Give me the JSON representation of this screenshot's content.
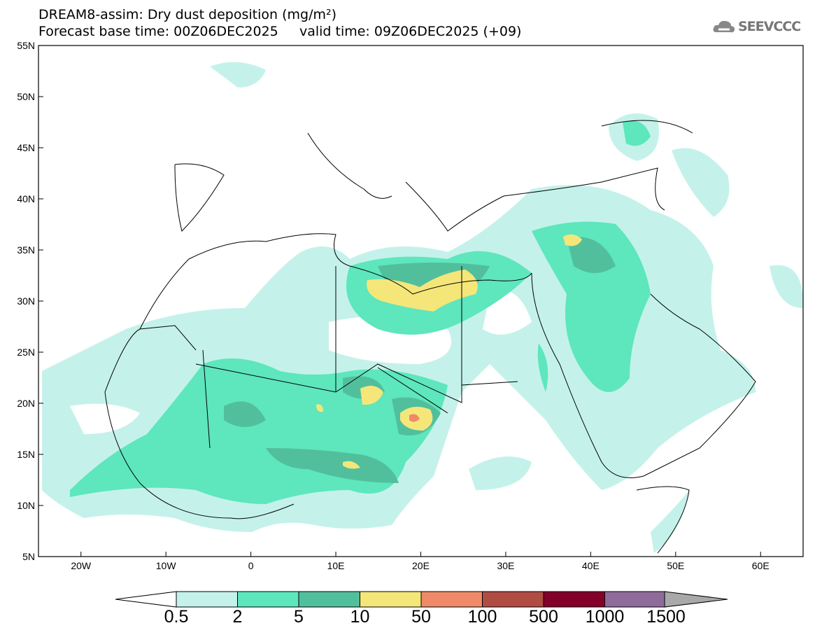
{
  "header": {
    "title": "DREAM8-assim: Dry dust deposition (mg/m²)",
    "subtitle": "Forecast base time: 00Z06DEC2025     valid time: 09Z06DEC2025 (+09)",
    "logo": "SEEVCCC"
  },
  "axes": {
    "lat_labels": [
      "55N",
      "50N",
      "45N",
      "40N",
      "35N",
      "30N",
      "25N",
      "20N",
      "15N",
      "10N",
      "5N"
    ],
    "lon_labels": [
      "20W",
      "10W",
      "0",
      "10E",
      "20E",
      "30E",
      "40E",
      "50E",
      "60E"
    ]
  },
  "colorbar": {
    "labels": [
      "0.5",
      "2",
      "5",
      "10",
      "50",
      "100",
      "500",
      "1000",
      "1500"
    ],
    "colors": [
      "#c4f2ea",
      "#5ee6bd",
      "#52bf9c",
      "#f5e67a",
      "#ee8a68",
      "#b04c42",
      "#82002a",
      "#8f6b9c",
      "#a9a9a9"
    ]
  }
}
